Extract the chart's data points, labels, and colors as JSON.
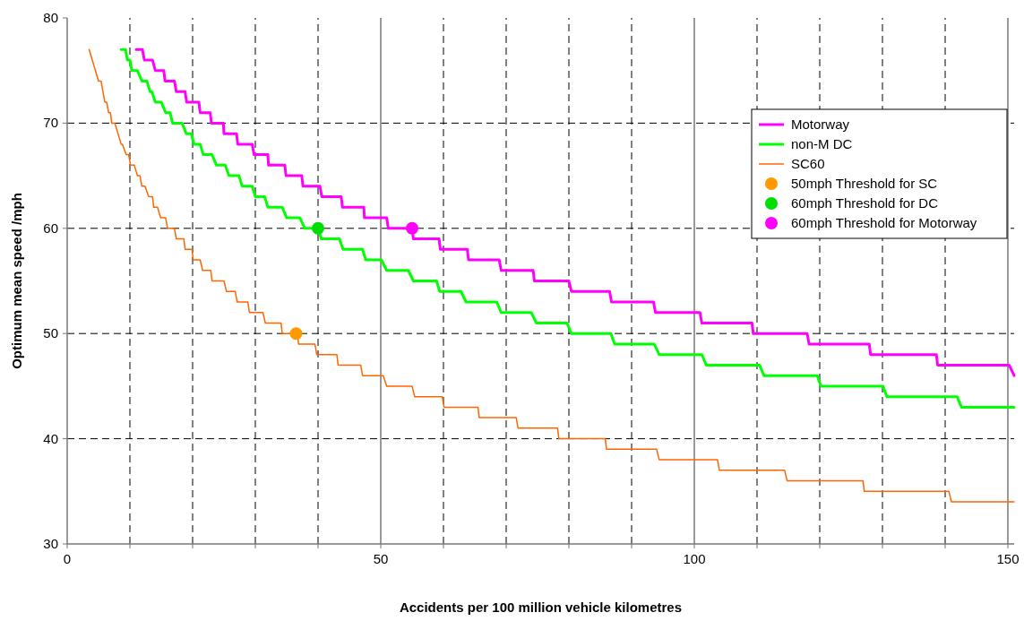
{
  "chart_data": {
    "type": "line",
    "xlabel": "Accidents per 100 million vehicle kilometres",
    "ylabel": "Optimum mean speed /mph",
    "xlim": [
      0,
      151
    ],
    "xticks": [
      0,
      {
        "value": 10,
        "label": null
      },
      {
        "value": 20,
        "label": null
      },
      {
        "value": 30,
        "label": null
      },
      {
        "value": 40,
        "label": null
      },
      50,
      {
        "value": 60,
        "label": null
      },
      {
        "value": 70,
        "label": null
      },
      {
        "value": 80,
        "label": null
      },
      {
        "value": 90,
        "label": null
      },
      100,
      {
        "value": 110,
        "label": null
      },
      {
        "value": 120,
        "label": null
      },
      {
        "value": 130,
        "label": null
      },
      {
        "value": 140,
        "label": null
      },
      150
    ],
    "ylim": [
      30,
      80
    ],
    "yticks": [
      30,
      40,
      50,
      60,
      70,
      80
    ],
    "grid": true,
    "legend": "top right",
    "marker": "none",
    "line_style": "solid",
    "series": [
      {
        "name": "Motorway",
        "color": "#ff00ff",
        "x": [
          11.0,
          12.0,
          12.3,
          13.6,
          14.05,
          15.4,
          15.6,
          17.1,
          17.4,
          18.8,
          19.05,
          21.0,
          21.2,
          22.8,
          23.0,
          24.9,
          25.0,
          27.0,
          27.2,
          29.5,
          29.8,
          32.0,
          32.1,
          34.7,
          34.9,
          37.4,
          37.6,
          40.3,
          40.6,
          43.7,
          43.9,
          47.3,
          47.4,
          50.95,
          51.2,
          55.0,
          55.2,
          59.3,
          59.5,
          63.8,
          64.0,
          68.9,
          69.2,
          74.3,
          74.5,
          80.0,
          80.4,
          86.5,
          86.8,
          93.5,
          93.8,
          100.9,
          101.2,
          109.2,
          109.4,
          118.0,
          118.3,
          127.9,
          128.1,
          138.6,
          138.8,
          150.2,
          151
        ],
        "values": [
          77,
          77,
          76,
          76,
          75,
          75,
          74,
          74,
          73,
          73,
          72,
          72,
          71,
          71,
          70,
          70,
          69,
          69,
          68,
          68,
          67,
          67,
          66,
          66,
          65,
          65,
          64,
          64,
          63,
          63,
          62,
          62,
          61,
          61,
          60,
          60,
          59,
          59,
          58,
          58,
          57,
          57,
          56,
          56,
          55,
          55,
          54,
          54,
          53,
          53,
          52,
          52,
          51,
          51,
          50,
          50,
          49,
          49,
          48,
          48,
          47,
          47,
          46
        ]
      },
      {
        "name": "non-M DC",
        "color": "#00ff00",
        "x": [
          8.6,
          9.3,
          9.6,
          10.0,
          10.3,
          11.2,
          11.9,
          12.7,
          13.2,
          13.5,
          14.05,
          15.0,
          15.7,
          16.4,
          16.8,
          18.3,
          19.0,
          19.8,
          20.2,
          21.2,
          21.7,
          23.1,
          23.8,
          25.2,
          25.8,
          27.4,
          27.9,
          29.5,
          30.0,
          31.5,
          32.0,
          34.3,
          35.0,
          37.1,
          37.9,
          40.0,
          40.5,
          43.4,
          44.0,
          47.1,
          47.6,
          50.1,
          50.95,
          54.4,
          55.2,
          58.9,
          59.4,
          62.8,
          63.6,
          68.5,
          69.2,
          74.0,
          74.8,
          79.7,
          80.4,
          86.7,
          87.3,
          93.6,
          94.4,
          101.2,
          101.9,
          110.4,
          111.1,
          119.6,
          120.2,
          130.1,
          130.7,
          141.9,
          142.6,
          151
        ],
        "values": [
          77,
          77,
          76,
          76,
          75,
          75,
          74,
          74,
          73,
          73,
          72,
          72,
          71,
          71,
          70,
          70,
          69,
          69,
          68,
          68,
          67,
          67,
          66,
          66,
          65,
          65,
          64,
          64,
          63,
          63,
          62,
          62,
          61,
          61,
          60,
          60,
          59,
          59,
          58,
          58,
          57,
          57,
          56,
          56,
          55,
          55,
          54,
          54,
          53,
          53,
          52,
          52,
          51,
          51,
          50,
          50,
          49,
          49,
          48,
          48,
          47,
          47,
          46,
          46,
          45,
          45,
          44,
          44,
          43,
          43
        ]
      },
      {
        "name": "SC60",
        "color": "#ff6600",
        "x": [
          3.5,
          4.0,
          4.5,
          5.0,
          5.4,
          5.7,
          6.0,
          6.3,
          6.6,
          6.9,
          7.1,
          7.6,
          8.1,
          8.6,
          8.8,
          9.4,
          9.8,
          10.1,
          10.7,
          11.2,
          11.6,
          11.9,
          12.4,
          13.0,
          13.6,
          13.8,
          14.4,
          14.9,
          15.7,
          16.0,
          17.1,
          17.4,
          18.6,
          18.8,
          19.9,
          20.1,
          21.2,
          21.6,
          22.9,
          23.1,
          25.0,
          25.4,
          26.8,
          27.1,
          28.8,
          29.05,
          31.2,
          31.6,
          34.1,
          34.3,
          36.7,
          36.9,
          39.5,
          39.8,
          43.0,
          43.2,
          46.8,
          47.1,
          50.4,
          50.95,
          55.0,
          55.4,
          59.8,
          60.1,
          65.5,
          65.7,
          71.6,
          71.9,
          78.2,
          78.4,
          85.8,
          86.0,
          94.0,
          94.4,
          103.7,
          104.0,
          114.4,
          114.8,
          126.9,
          127.1,
          140.6,
          141.0,
          151
        ],
        "values": [
          77,
          76,
          75,
          74,
          74,
          73,
          72,
          72,
          71,
          71,
          70,
          70,
          69,
          68,
          68,
          67,
          67,
          66,
          66,
          65,
          65,
          64,
          64,
          63,
          63,
          62,
          62,
          61,
          61,
          60,
          60,
          59,
          59,
          58,
          58,
          57,
          57,
          56,
          56,
          55,
          55,
          54,
          54,
          53,
          53,
          52,
          52,
          51,
          51,
          50,
          50,
          49,
          49,
          48,
          48,
          47,
          47,
          46,
          46,
          45,
          45,
          44,
          44,
          43,
          43,
          42,
          42,
          41,
          41,
          40,
          40,
          39,
          39,
          38,
          38,
          37,
          37,
          36,
          36,
          35,
          35,
          34,
          34
        ]
      },
      {
        "name": "50mph Threshold for SC",
        "type": "scatter",
        "marker": "circle",
        "color": "#ff9900",
        "x": [
          36.5
        ],
        "values": [
          50
        ]
      },
      {
        "name": "60mph Threshold for DC",
        "type": "scatter",
        "marker": "circle",
        "color": "#00dd00",
        "x": [
          40
        ],
        "values": [
          60
        ]
      },
      {
        "name": "60mph Threshold for Motorway",
        "type": "scatter",
        "marker": "circle",
        "color": "#ff00ff",
        "x": [
          55
        ],
        "values": [
          60
        ]
      }
    ]
  }
}
